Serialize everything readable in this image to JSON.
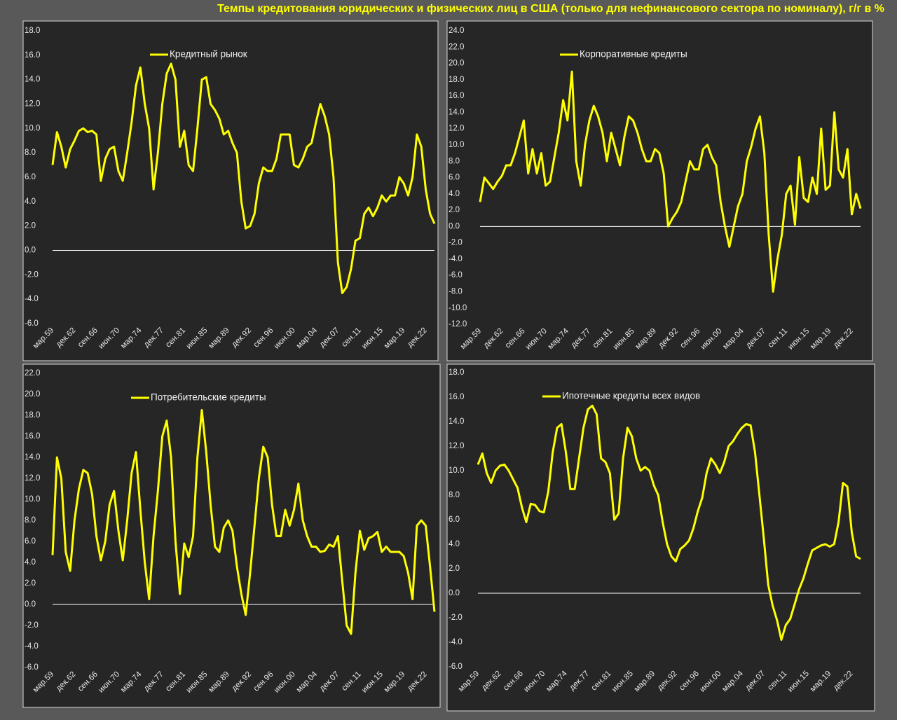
{
  "title": "Темпы кредитования юридических и физических лиц в США (только для нефинансового сектора по номиналу), г/г в %",
  "chart_data": [
    {
      "type": "line",
      "categories": [
        "мар.59",
        null,
        null,
        null,
        null,
        "дек.62",
        null,
        null,
        null,
        null,
        "сен.66",
        null,
        null,
        null,
        null,
        "июн.70",
        null,
        null,
        null,
        null,
        "мар.74",
        null,
        null,
        null,
        null,
        "дек.77",
        null,
        null,
        null,
        null,
        "сен.81",
        null,
        null,
        null,
        null,
        "июн.85",
        null,
        null,
        null,
        null,
        "мар.89",
        null,
        null,
        null,
        null,
        "дек.92",
        null,
        null,
        null,
        null,
        "сен.96",
        null,
        null,
        null,
        null,
        "июн.00",
        null,
        null,
        null,
        null,
        "мар.04",
        null,
        null,
        null,
        null,
        "дек.07",
        null,
        null,
        null,
        null,
        "сен.11",
        null,
        null,
        null,
        null,
        "июн.15",
        null,
        null,
        null,
        null,
        "мар.19",
        null,
        null,
        null,
        null,
        "дек.22",
        null,
        null
      ],
      "series": [
        {
          "name": "Кредитный рынок",
          "color": "#ffff00",
          "values": [
            7,
            9.7,
            8.5,
            6.8,
            8.3,
            9,
            9.8,
            10,
            9.7,
            9.8,
            9.5,
            5.7,
            7.5,
            8.3,
            8.5,
            6.5,
            5.7,
            8,
            10.5,
            13.5,
            15,
            12,
            10,
            5,
            8,
            12,
            14.5,
            15.3,
            14,
            8.5,
            9.8,
            7,
            6.5,
            10,
            14,
            14.2,
            12,
            11.5,
            10.8,
            9.5,
            9.8,
            8.8,
            8,
            4,
            1.8,
            2,
            3,
            5.5,
            6.8,
            6.5,
            6.5,
            7.5,
            9.5,
            9.5,
            9.5,
            7,
            6.8,
            7.5,
            8.5,
            8.8,
            10.5,
            12,
            11,
            9.5,
            6,
            -1,
            -3.5,
            -3,
            -1.5,
            0.8,
            1,
            3,
            3.5,
            2.8,
            3.5,
            4.5,
            4,
            4.5,
            4.5,
            6,
            5.5,
            4.5,
            6,
            9.5,
            8.5,
            5,
            3,
            2.2
          ]
        }
      ],
      "ylim": [
        -6,
        18
      ],
      "yticks": [
        {
          "value": -6,
          "label": "-6.0"
        },
        {
          "value": -4,
          "label": "-4.0"
        },
        {
          "value": -2,
          "label": "-2.0"
        },
        {
          "value": 0,
          "label": "0.0"
        },
        {
          "value": 2,
          "label": "2.0"
        },
        {
          "value": 4,
          "label": "4.0"
        },
        {
          "value": 6,
          "label": "6.0"
        },
        {
          "value": 8,
          "label": "8.0"
        },
        {
          "value": 10,
          "label": "10.0"
        },
        {
          "value": 12,
          "label": "12.0"
        },
        {
          "value": 14,
          "label": "14.0"
        },
        {
          "value": 16,
          "label": "16.0"
        },
        {
          "value": 18,
          "label": "18.0"
        }
      ]
    },
    {
      "type": "line",
      "categories": [
        "мар.59",
        null,
        null,
        null,
        null,
        "дек.62",
        null,
        null,
        null,
        null,
        "сен.66",
        null,
        null,
        null,
        null,
        "июн.70",
        null,
        null,
        null,
        null,
        "мар.74",
        null,
        null,
        null,
        null,
        "дек.77",
        null,
        null,
        null,
        null,
        "сен.81",
        null,
        null,
        null,
        null,
        "июн.85",
        null,
        null,
        null,
        null,
        "мар.89",
        null,
        null,
        null,
        null,
        "дек.92",
        null,
        null,
        null,
        null,
        "сен.96",
        null,
        null,
        null,
        null,
        "июн.00",
        null,
        null,
        null,
        null,
        "мар.04",
        null,
        null,
        null,
        null,
        "дек.07",
        null,
        null,
        null,
        null,
        "сен.11",
        null,
        null,
        null,
        null,
        "июн.15",
        null,
        null,
        null,
        null,
        "мар.19",
        null,
        null,
        null,
        null,
        "дек.22",
        null,
        null
      ],
      "series": [
        {
          "name": "Корпоративные кредиты",
          "color": "#ffff00",
          "values": [
            3,
            6,
            5.3,
            4.6,
            5.5,
            6.2,
            7.5,
            7.5,
            9,
            11,
            13,
            6.5,
            9.5,
            6.5,
            9,
            5,
            5.5,
            8.5,
            11.5,
            15.5,
            13,
            19,
            8,
            5,
            10,
            13,
            14.8,
            13.5,
            11.5,
            8,
            11.5,
            9.5,
            7.5,
            11,
            13.5,
            13,
            11.5,
            9.5,
            8,
            8,
            9.5,
            9,
            6.5,
            0,
            1,
            1.8,
            3,
            5.5,
            8,
            7,
            7,
            9.5,
            10,
            8.5,
            7.5,
            3,
            0,
            -2.5,
            0,
            2.5,
            4,
            8,
            9.8,
            12,
            13.5,
            9,
            -1,
            -8,
            -4,
            -1,
            4,
            5,
            0.2,
            8.5,
            3.5,
            3,
            6,
            4,
            12,
            4.5,
            5,
            14,
            7,
            6,
            9.5,
            1.5,
            4,
            2.2
          ]
        }
      ],
      "ylim": [
        -12,
        24
      ],
      "yticks": [
        {
          "value": -12,
          "label": "-12.0"
        },
        {
          "value": -10,
          "label": "-10.0"
        },
        {
          "value": -8,
          "label": "-8.0"
        },
        {
          "value": -6,
          "label": "-6.0"
        },
        {
          "value": -4,
          "label": "-4.0"
        },
        {
          "value": -2,
          "label": "-2.0"
        },
        {
          "value": 0,
          "label": "0.0"
        },
        {
          "value": 2,
          "label": "2.0"
        },
        {
          "value": 4,
          "label": "4.0"
        },
        {
          "value": 6,
          "label": "6.0"
        },
        {
          "value": 8,
          "label": "8.0"
        },
        {
          "value": 10,
          "label": "10.0"
        },
        {
          "value": 12,
          "label": "12.0"
        },
        {
          "value": 14,
          "label": "14.0"
        },
        {
          "value": 16,
          "label": "16.0"
        },
        {
          "value": 18,
          "label": "18.0"
        },
        {
          "value": 20,
          "label": "20.0"
        },
        {
          "value": 22,
          "label": "22.0"
        },
        {
          "value": 24,
          "label": "24.0"
        }
      ]
    },
    {
      "type": "line",
      "categories": [
        "мар.59",
        null,
        null,
        null,
        null,
        "дек.62",
        null,
        null,
        null,
        null,
        "сен.66",
        null,
        null,
        null,
        null,
        "июн.70",
        null,
        null,
        null,
        null,
        "мар.74",
        null,
        null,
        null,
        null,
        "дек.77",
        null,
        null,
        null,
        null,
        "сен.81",
        null,
        null,
        null,
        null,
        "июн.85",
        null,
        null,
        null,
        null,
        "мар.89",
        null,
        null,
        null,
        null,
        "дек.92",
        null,
        null,
        null,
        null,
        "сен.96",
        null,
        null,
        null,
        null,
        "июн.00",
        null,
        null,
        null,
        null,
        "мар.04",
        null,
        null,
        null,
        null,
        "дек.07",
        null,
        null,
        null,
        null,
        "сен.11",
        null,
        null,
        null,
        null,
        "июн.15",
        null,
        null,
        null,
        null,
        "мар.19",
        null,
        null,
        null,
        null,
        "дек.22",
        null,
        null
      ],
      "series": [
        {
          "name": "Потребительские кредиты",
          "color": "#ffff00",
          "values": [
            4.7,
            14,
            12,
            5,
            3.2,
            8,
            11,
            12.8,
            12.5,
            10.5,
            6.5,
            4.2,
            6,
            9.5,
            10.8,
            7,
            4.2,
            8,
            12.5,
            14.5,
            9,
            4,
            0.5,
            6.5,
            10.8,
            16,
            17.5,
            14,
            6,
            1,
            5.8,
            4.5,
            6.5,
            14,
            18.5,
            14.5,
            9.5,
            5.5,
            5,
            7.3,
            8,
            7,
            3.6,
            1,
            -1,
            3,
            7.5,
            12,
            15,
            14,
            9.5,
            6.5,
            6.5,
            9,
            7.5,
            9,
            11.5,
            8,
            6.5,
            5.5,
            5.5,
            5,
            5.1,
            5.7,
            5.5,
            6.5,
            2.2,
            -2,
            -2.8,
            3,
            7,
            5.2,
            6.3,
            6.5,
            6.9,
            5,
            5.5,
            5,
            5,
            5,
            4.6,
            3,
            0.5,
            7.5,
            8,
            7.5,
            3.6,
            -0.7
          ]
        }
      ],
      "ylim": [
        -6,
        22
      ],
      "yticks": [
        {
          "value": -6,
          "label": "-6.0"
        },
        {
          "value": -4,
          "label": "-4.0"
        },
        {
          "value": -2,
          "label": "-2.0"
        },
        {
          "value": 0,
          "label": "0.0"
        },
        {
          "value": 2,
          "label": "2.0"
        },
        {
          "value": 4,
          "label": "4.0"
        },
        {
          "value": 6,
          "label": "6.0"
        },
        {
          "value": 8,
          "label": "8.0"
        },
        {
          "value": 10,
          "label": "10.0"
        },
        {
          "value": 12,
          "label": "12.0"
        },
        {
          "value": 14,
          "label": "14.0"
        },
        {
          "value": 16,
          "label": "16.0"
        },
        {
          "value": 18,
          "label": "18.0"
        },
        {
          "value": 20,
          "label": "20.0"
        },
        {
          "value": 22,
          "label": "22.0"
        }
      ]
    },
    {
      "type": "line",
      "categories": [
        "мар.59",
        null,
        null,
        null,
        null,
        "дек.62",
        null,
        null,
        null,
        null,
        "сен.66",
        null,
        null,
        null,
        null,
        "июн.70",
        null,
        null,
        null,
        null,
        "мар.74",
        null,
        null,
        null,
        null,
        "дек.77",
        null,
        null,
        null,
        null,
        "сен.81",
        null,
        null,
        null,
        null,
        "июн.85",
        null,
        null,
        null,
        null,
        "мар.89",
        null,
        null,
        null,
        null,
        "дек.92",
        null,
        null,
        null,
        null,
        "сен.96",
        null,
        null,
        null,
        null,
        "июн.00",
        null,
        null,
        null,
        null,
        "мар.04",
        null,
        null,
        null,
        null,
        "дек.07",
        null,
        null,
        null,
        null,
        "сен.11",
        null,
        null,
        null,
        null,
        "июн.15",
        null,
        null,
        null,
        null,
        "мар.19",
        null,
        null,
        null,
        null,
        "дек.22",
        null,
        null
      ],
      "series": [
        {
          "name": "Ипотечные кредиты всех видов",
          "color": "#ffff00",
          "values": [
            10.5,
            11.4,
            9.8,
            9,
            10,
            10.4,
            10.5,
            10,
            9.3,
            8.6,
            7,
            5.8,
            7.3,
            7.2,
            6.7,
            6.6,
            8.3,
            11.5,
            13.5,
            13.8,
            11.5,
            8.5,
            8.5,
            11,
            13.5,
            15,
            15.3,
            14.6,
            11,
            10.7,
            9.8,
            6,
            6.5,
            11,
            13.5,
            12.8,
            11,
            10,
            10.3,
            10,
            8.8,
            8,
            5.8,
            4,
            3,
            2.6,
            3.6,
            3.9,
            4.3,
            5.3,
            6.7,
            7.8,
            9.8,
            11,
            10.5,
            9.8,
            10.7,
            12,
            12.4,
            13,
            13.5,
            13.8,
            13.7,
            11.5,
            8,
            4.5,
            0.7,
            -1,
            -2.2,
            -3.8,
            -2.6,
            -2.1,
            -0.9,
            0.3,
            1.2,
            2.4,
            3.5,
            3.7,
            3.9,
            4,
            3.8,
            4,
            5.8,
            9,
            8.7,
            5,
            3,
            2.8
          ]
        }
      ],
      "ylim": [
        -6,
        18
      ],
      "yticks": [
        {
          "value": -6,
          "label": "-6.0"
        },
        {
          "value": -4,
          "label": "-4.0"
        },
        {
          "value": -2,
          "label": "-2.0"
        },
        {
          "value": 0,
          "label": "0.0"
        },
        {
          "value": 2,
          "label": "2.0"
        },
        {
          "value": 4,
          "label": "4.0"
        },
        {
          "value": 6,
          "label": "6.0"
        },
        {
          "value": 8,
          "label": "8.0"
        },
        {
          "value": 10,
          "label": "10.0"
        },
        {
          "value": 12,
          "label": "12.0"
        },
        {
          "value": 14,
          "label": "14.0"
        },
        {
          "value": 16,
          "label": "16.0"
        },
        {
          "value": 18,
          "label": "18.0"
        }
      ]
    }
  ]
}
